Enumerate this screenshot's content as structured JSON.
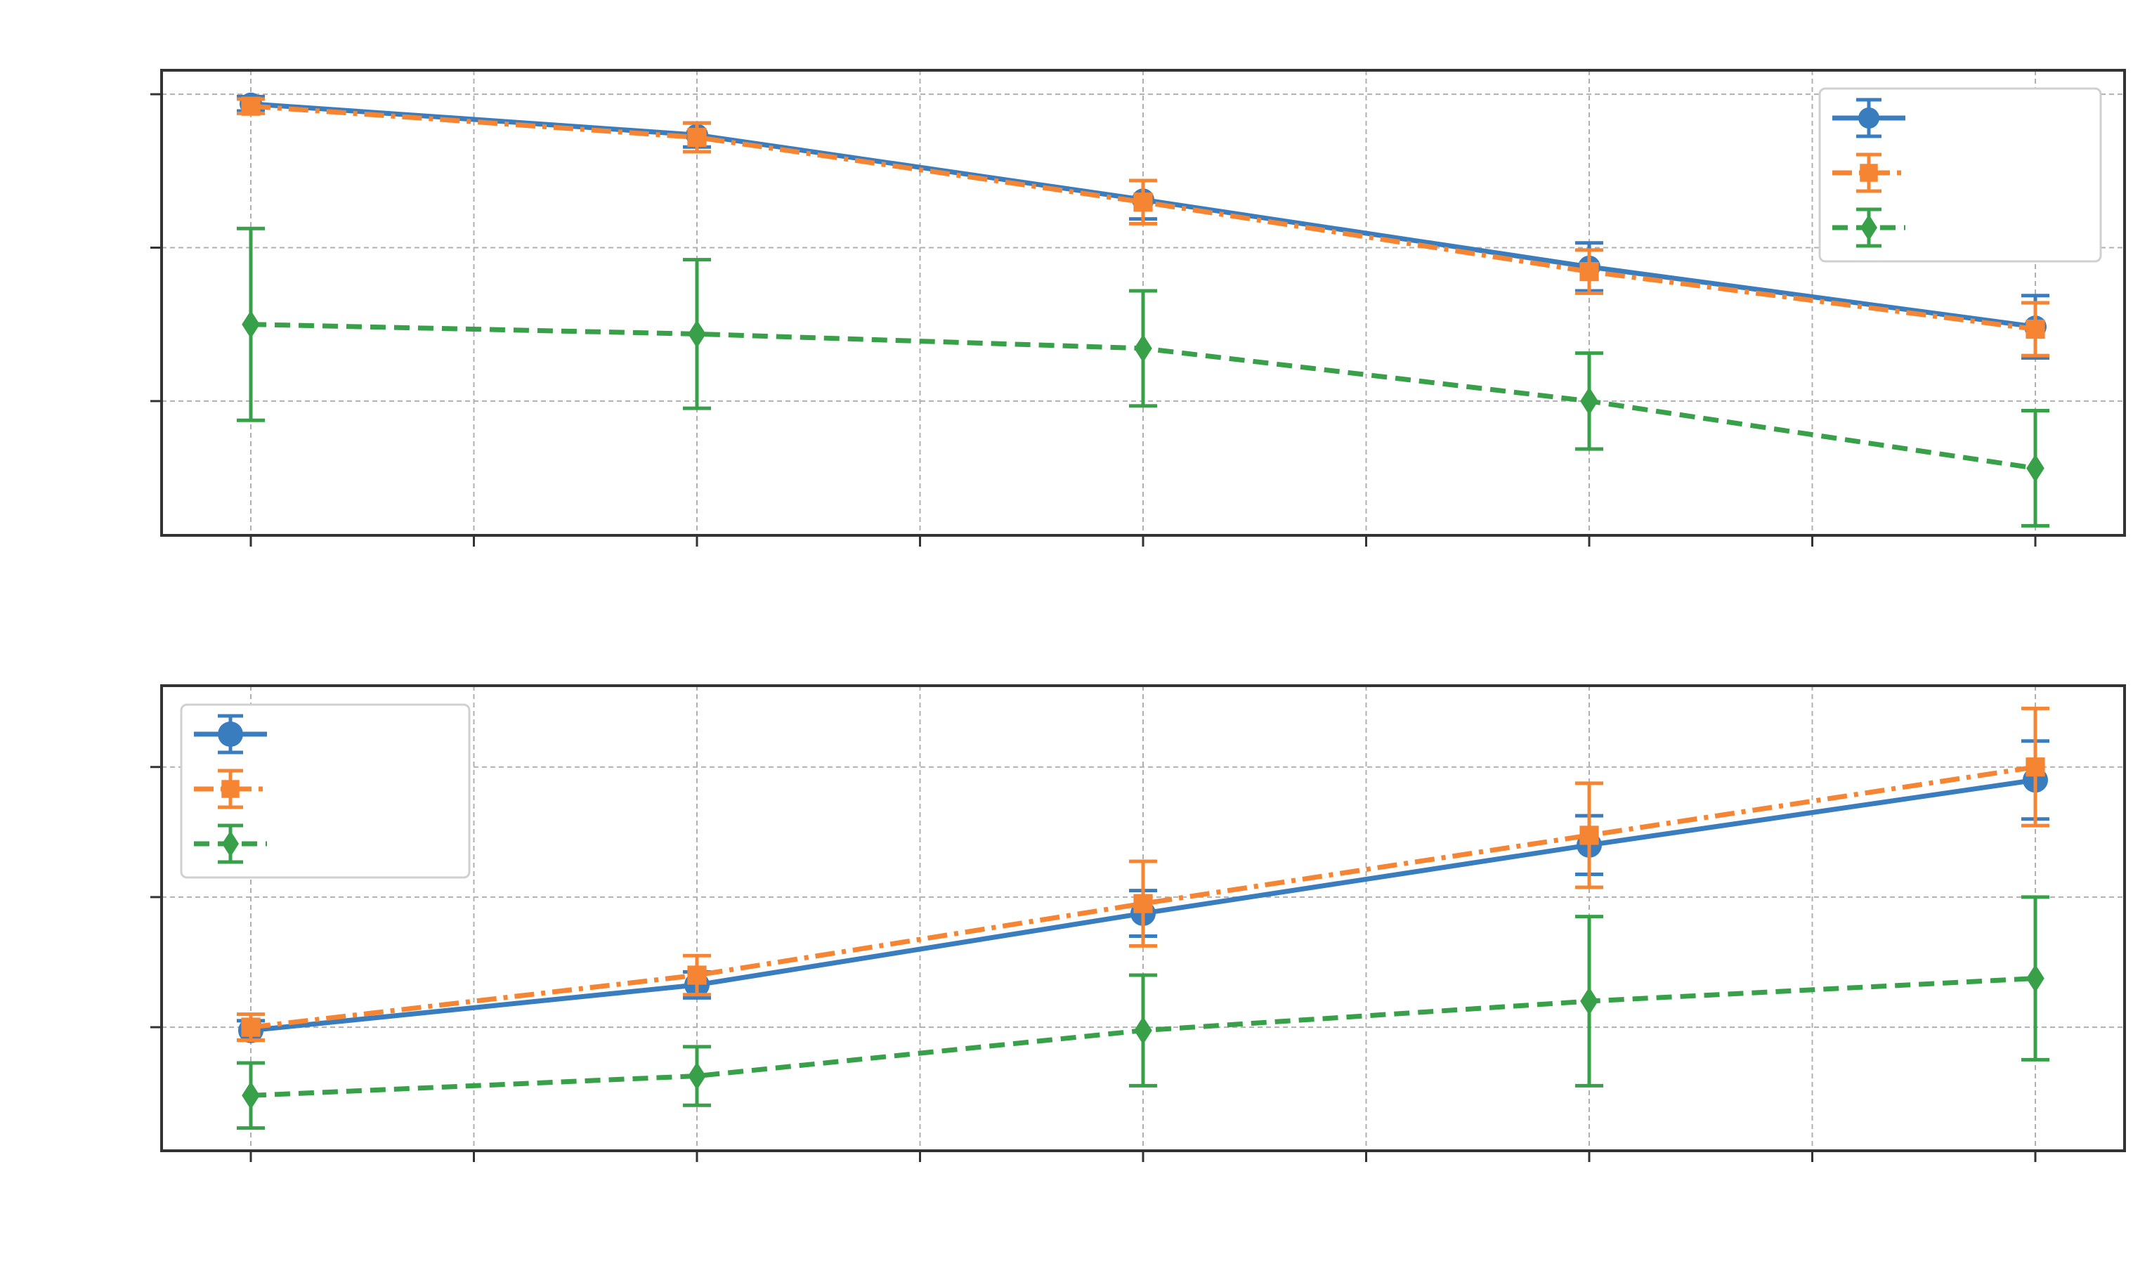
{
  "chart_data": [
    {
      "type": "line",
      "grid": true,
      "legend": "top-right",
      "x": [
        0,
        2,
        4,
        6,
        8
      ],
      "xlim": [
        -0.4,
        8.4
      ],
      "ylim": [
        -0.82,
        0.15
      ],
      "yticks": [
        0.1,
        -0.22,
        -0.54
      ],
      "xticks": [
        0,
        1,
        2,
        3,
        4,
        5,
        6,
        7,
        8
      ],
      "series": [
        {
          "color": "#3a7dbf",
          "linestyle": "solid",
          "marker": "circle",
          "values": [
            0.08,
            0.015,
            -0.12,
            -0.26,
            -0.385
          ],
          "errors": [
            0.015,
            0.025,
            0.04,
            0.05,
            0.065
          ]
        },
        {
          "color": "#f58532",
          "linestyle": "dashdot",
          "marker": "square",
          "values": [
            0.075,
            0.01,
            -0.125,
            -0.27,
            -0.39
          ],
          "errors": [
            0.015,
            0.03,
            0.045,
            0.045,
            0.055
          ]
        },
        {
          "color": "#37a048",
          "linestyle": "dashed",
          "marker": "diamond",
          "values": [
            -0.38,
            -0.4,
            -0.43,
            -0.54,
            -0.68
          ],
          "errors": [
            0.2,
            0.155,
            0.12,
            0.1,
            0.12
          ]
        }
      ]
    },
    {
      "type": "line",
      "grid": true,
      "legend": "top-left",
      "x": [
        0,
        2,
        4,
        6,
        8
      ],
      "xlim": [
        -0.4,
        8.4
      ],
      "ylim": [
        0.43,
        1.145
      ],
      "yticks": [
        1.02,
        0.82,
        0.62
      ],
      "xticks": [
        0,
        1,
        2,
        3,
        4,
        5,
        6,
        7,
        8
      ],
      "series": [
        {
          "color": "#3a7dbf",
          "linestyle": "solid",
          "marker": "circle",
          "values": [
            0.615,
            0.685,
            0.795,
            0.9,
            1.0
          ],
          "errors": [
            0.015,
            0.02,
            0.035,
            0.045,
            0.06
          ]
        },
        {
          "color": "#f58532",
          "linestyle": "dashdot",
          "marker": "square",
          "values": [
            0.62,
            0.7,
            0.81,
            0.915,
            1.02
          ],
          "errors": [
            0.02,
            0.03,
            0.065,
            0.08,
            0.09
          ]
        },
        {
          "color": "#37a048",
          "linestyle": "dashed",
          "marker": "diamond",
          "values": [
            0.515,
            0.545,
            0.615,
            0.66,
            0.695
          ],
          "errors": [
            0.05,
            0.045,
            0.085,
            0.13,
            0.125
          ]
        }
      ]
    }
  ]
}
